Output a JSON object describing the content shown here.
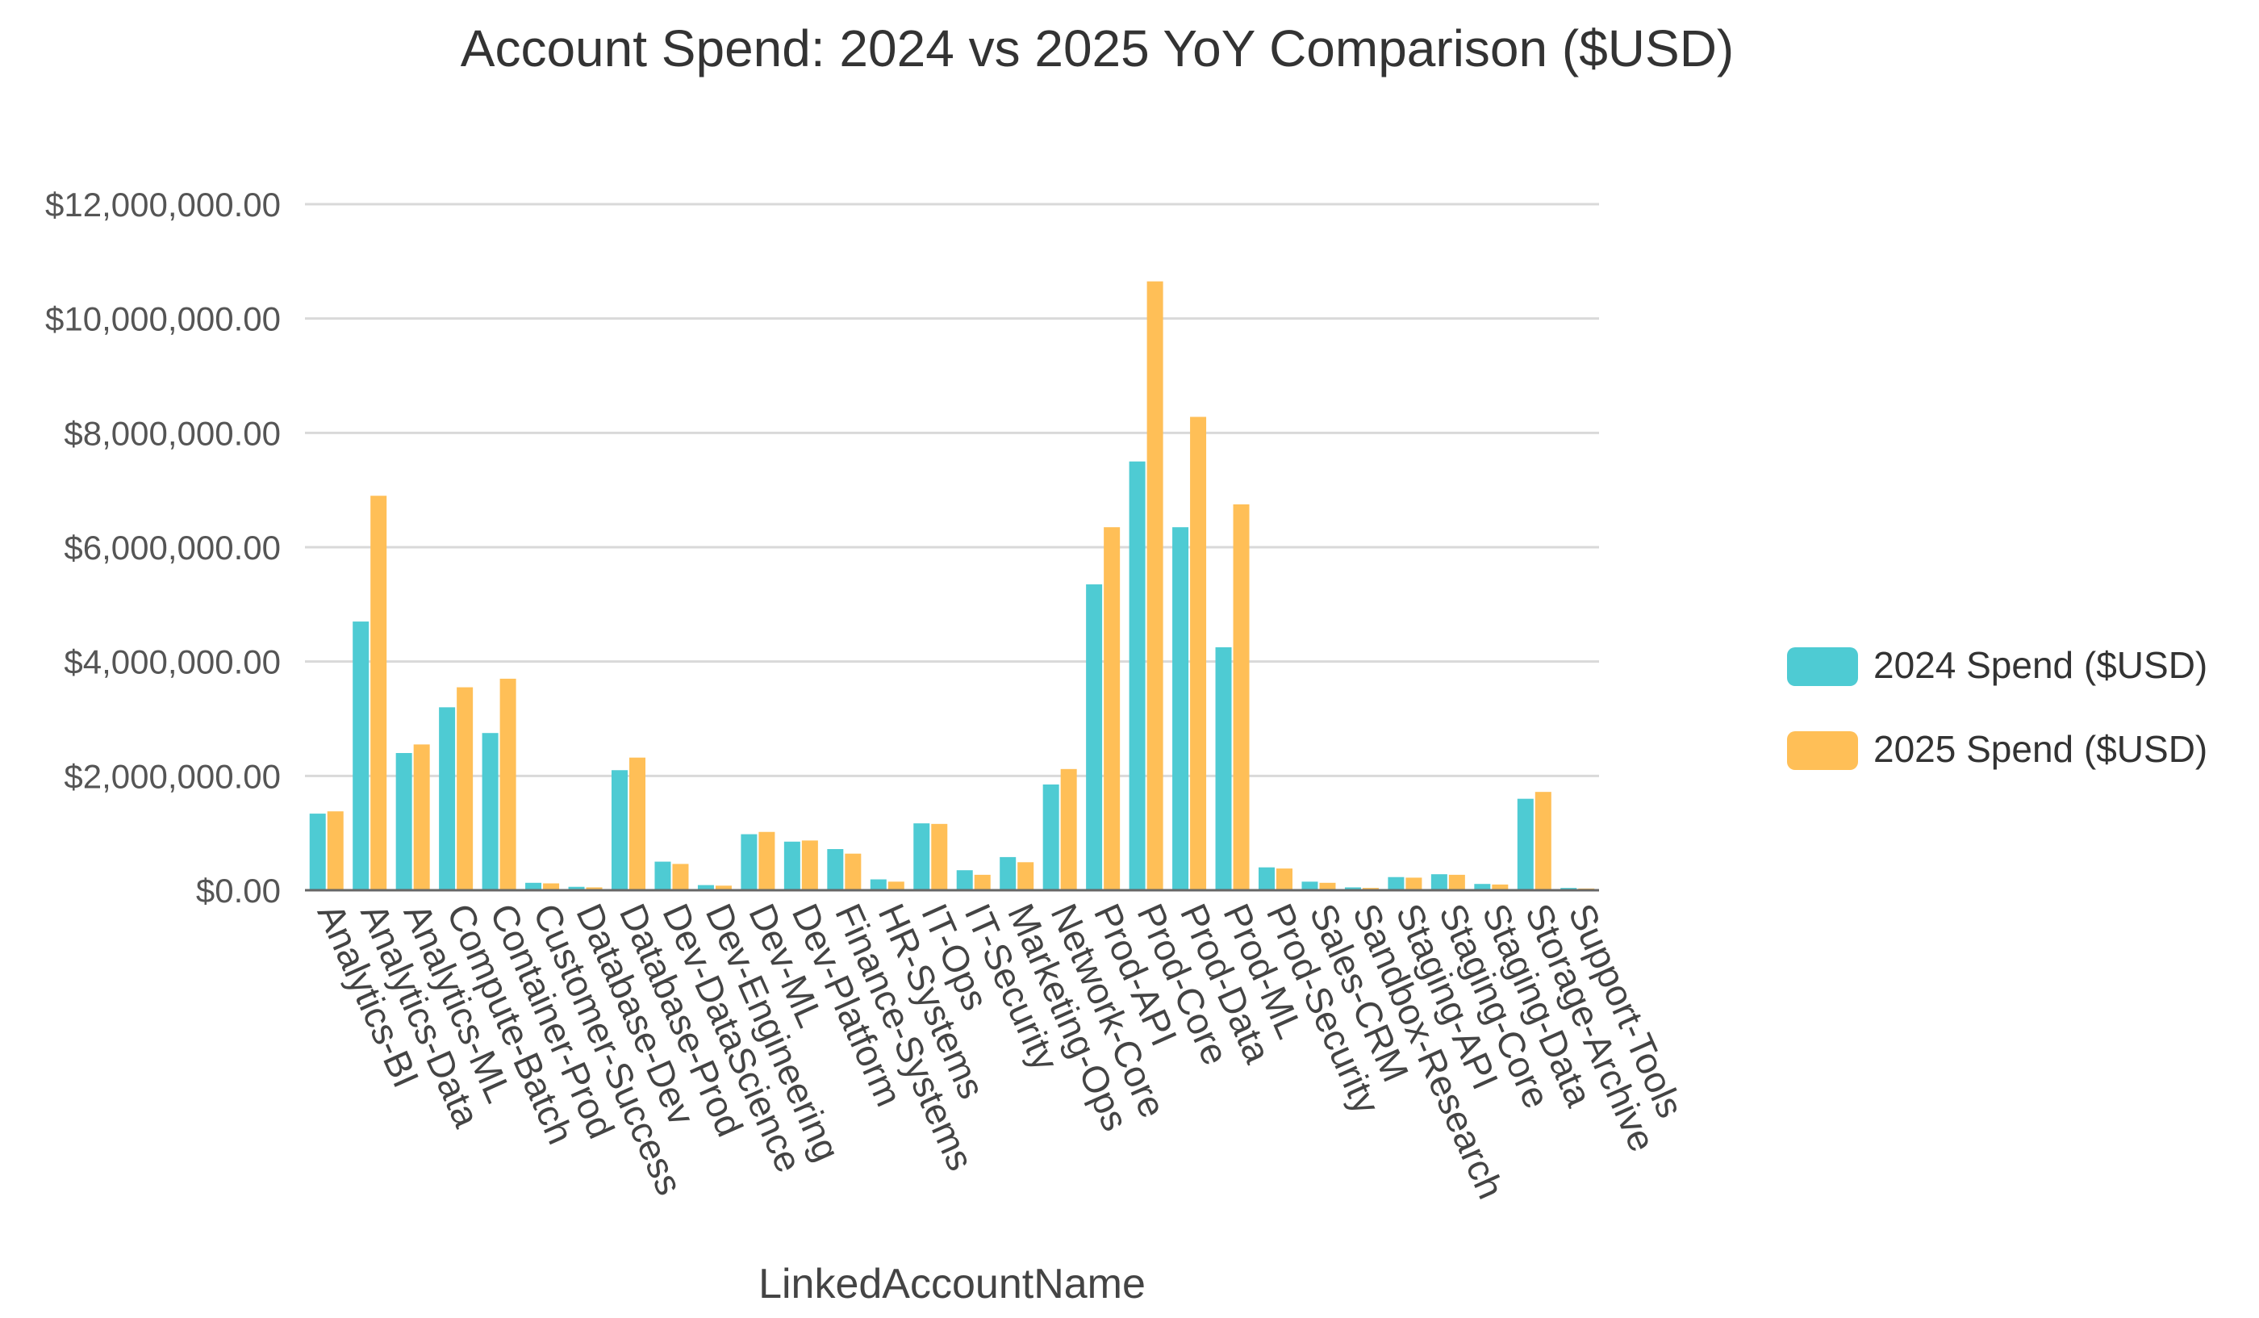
{
  "chart_data": {
    "type": "bar",
    "title": "Account Spend: 2024 vs 2025 YoY Comparison ($USD)",
    "xlabel": "LinkedAccountName",
    "ylabel": "",
    "ylim": [
      0,
      12000000
    ],
    "yticks": [
      0,
      2000000,
      4000000,
      6000000,
      8000000,
      10000000,
      12000000
    ],
    "ytick_labels": [
      "$0.00",
      "$2,000,000.00",
      "$4,000,000.00",
      "$6,000,000.00",
      "$8,000,000.00",
      "$10,000,000.00",
      "$12,000,000.00"
    ],
    "grid": true,
    "legend_position": "right",
    "categories": [
      "Analytics-BI",
      "Analytics-Data",
      "Analytics-ML",
      "Compute-Batch",
      "Container-Prod",
      "Customer-Success",
      "Database-Dev",
      "Database-Prod",
      "Dev-DataScience",
      "Dev-Engineering",
      "Dev-ML",
      "Dev-Platform",
      "Finance-Systems",
      "HR-Systems",
      "IT-Ops",
      "IT-Security",
      "Marketing-Ops",
      "Network-Core",
      "Prod-API",
      "Prod-Core",
      "Prod-Data",
      "Prod-ML",
      "Prod-Security",
      "Sales-CRM",
      "Sandbox-Research",
      "Staging-API",
      "Staging-Core",
      "Staging-Data",
      "Storage-Archive",
      "Support-Tools"
    ],
    "series": [
      {
        "name": "2024 Spend ($USD)",
        "color": "#4ECBD3",
        "values": [
          1340000,
          4700000,
          2400000,
          3200000,
          2750000,
          130000,
          60000,
          2100000,
          500000,
          90000,
          980000,
          850000,
          720000,
          190000,
          1170000,
          350000,
          580000,
          1850000,
          5350000,
          7500000,
          6350000,
          4250000,
          400000,
          150000,
          50000,
          230000,
          280000,
          110000,
          1600000,
          40000
        ]
      },
      {
        "name": "2025 Spend ($USD)",
        "color": "#FFBF57",
        "values": [
          1380000,
          6900000,
          2550000,
          3550000,
          3700000,
          120000,
          50000,
          2320000,
          460000,
          80000,
          1020000,
          870000,
          640000,
          150000,
          1160000,
          270000,
          490000,
          2120000,
          6350000,
          10650000,
          8280000,
          6750000,
          380000,
          130000,
          40000,
          220000,
          270000,
          100000,
          1720000,
          30000
        ]
      }
    ]
  }
}
